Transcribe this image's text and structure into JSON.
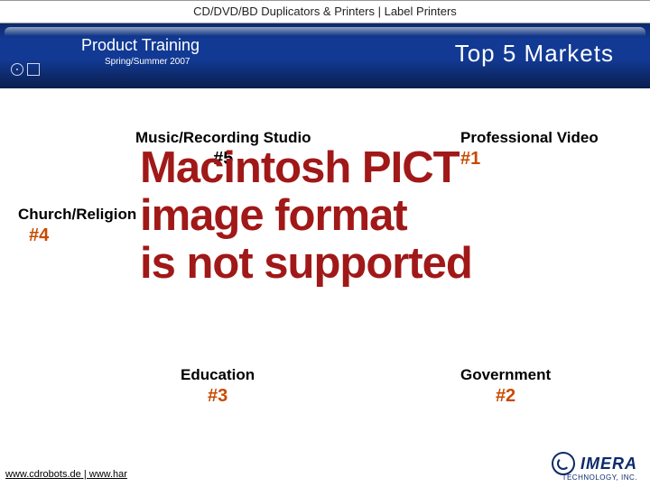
{
  "colors": {
    "header_gradient_top": "#0b2a6b",
    "header_gradient_mid": "#123a94",
    "header_gradient_bottom": "#0a1e4d",
    "accent_orange": "#c74a00",
    "pict_red": "#a11818",
    "brand_blue": "#0b2a6b",
    "text_black": "#000000",
    "background": "#ffffff"
  },
  "topbar": {
    "text": "CD/DVD/BD Duplicators & Printers | Label Printers"
  },
  "header": {
    "product_title": "Product Training",
    "subtitle": "Spring/Summer 2007",
    "slide_title": "Top 5 Markets"
  },
  "markets": [
    {
      "id": "m1",
      "name": "Professional Video",
      "rank": "#1",
      "rank_color": "#c74a00"
    },
    {
      "id": "m2",
      "name": "Government",
      "rank": "#2",
      "rank_color": "#c74a00"
    },
    {
      "id": "m3",
      "name": "Education",
      "rank": "#3",
      "rank_color": "#c74a00"
    },
    {
      "id": "m4",
      "name": "Church/Religion",
      "rank": "#4",
      "rank_color": "#c74a00"
    },
    {
      "id": "m5",
      "name": "Music/Recording Studio",
      "rank": "#5",
      "rank_color": "#000000"
    }
  ],
  "pict_message": {
    "line1": "Macintosh PICT",
    "line2": "image format",
    "line3": "is not supported"
  },
  "footer": {
    "link1": "www.cdrobots.de",
    "sep": " | ",
    "link2": "www.har",
    "logo_word": "IMERA",
    "logo_sub": "TECHNOLOGY, INC."
  }
}
